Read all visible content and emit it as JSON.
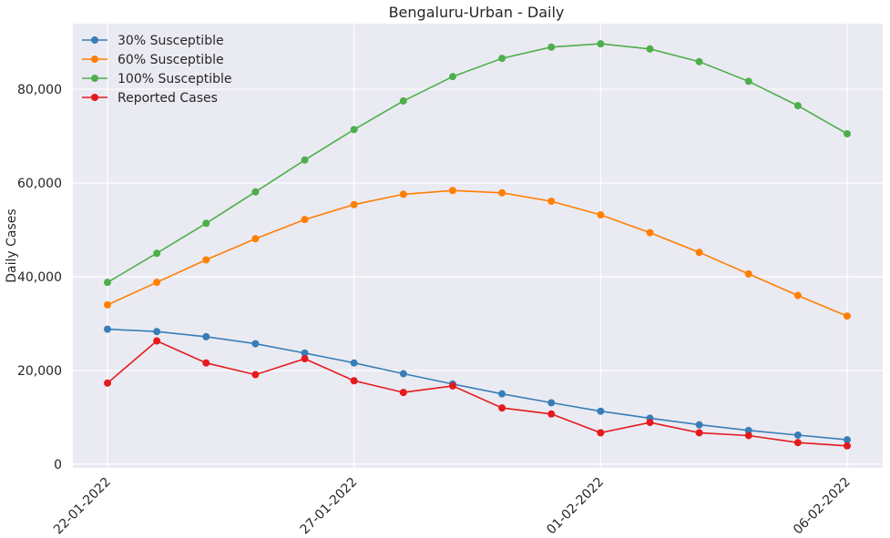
{
  "chart_data": {
    "type": "line",
    "title": "Bengaluru-Urban - Daily",
    "xlabel": "",
    "ylabel": "Daily Cases",
    "x": [
      "22-01-2022",
      "23-01-2022",
      "24-01-2022",
      "25-01-2022",
      "26-01-2022",
      "27-01-2022",
      "28-01-2022",
      "29-01-2022",
      "30-01-2022",
      "31-01-2022",
      "01-02-2022",
      "02-02-2022",
      "03-02-2022",
      "04-02-2022",
      "05-02-2022",
      "06-02-2022"
    ],
    "xtick_labels": [
      "22-01-2022",
      "27-01-2022",
      "01-02-2022",
      "06-02-2022"
    ],
    "xtick_index": [
      0,
      5,
      10,
      15
    ],
    "yticks": [
      0,
      20000,
      40000,
      60000,
      80000
    ],
    "ytick_labels": [
      "0",
      "20,000",
      "40,000",
      "60,000",
      "80,000"
    ],
    "ylim": [
      -800,
      94000
    ],
    "grid": true,
    "legend_position": "top-left",
    "series": [
      {
        "name": "30% Susceptible",
        "color": "#377eb8",
        "values": [
          28800,
          28300,
          27200,
          25700,
          23700,
          21600,
          19300,
          17100,
          15000,
          13100,
          11300,
          9800,
          8400,
          7200,
          6200,
          5200
        ]
      },
      {
        "name": "60% Susceptible",
        "color": "#ff7f00",
        "values": [
          34000,
          38800,
          43600,
          48100,
          52200,
          55400,
          57600,
          58400,
          57900,
          56100,
          53200,
          49400,
          45200,
          40600,
          36000,
          31600
        ]
      },
      {
        "name": "100% Susceptible",
        "color": "#4daf4a",
        "values": [
          38800,
          45000,
          51400,
          58100,
          64900,
          71400,
          77500,
          82700,
          86600,
          89000,
          89700,
          88600,
          85900,
          81700,
          76500,
          70500
        ]
      },
      {
        "name": "Reported Cases",
        "color": "#e41a1c",
        "values": [
          17300,
          26300,
          21600,
          19100,
          22500,
          17800,
          15300,
          16700,
          12000,
          10700,
          6700,
          8900,
          6700,
          6100,
          4600,
          3900
        ]
      }
    ]
  }
}
